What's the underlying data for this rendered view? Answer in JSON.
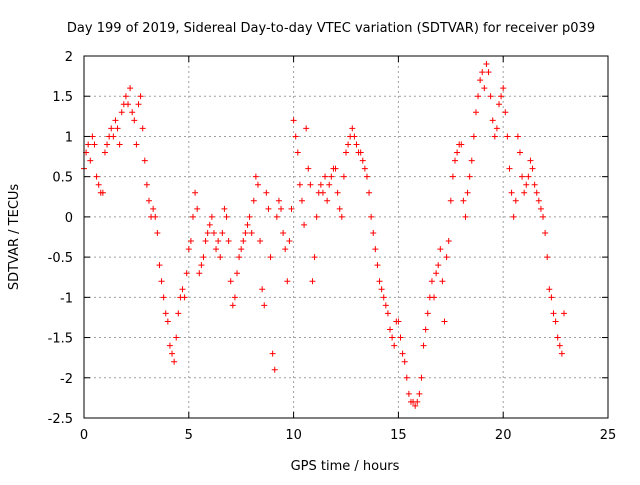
{
  "chart_data": {
    "type": "scatter",
    "title": "Day 199 of 2019, Sidereal Day-to-day VTEC variation (SDTVAR) for receiver p039",
    "xlabel": "GPS time / hours",
    "ylabel": "SDTVAR / TECUs",
    "xlim": [
      0,
      25
    ],
    "ylim": [
      -2.5,
      2
    ],
    "xticks": [
      0,
      5,
      10,
      15,
      20,
      25
    ],
    "yticks": [
      -2.5,
      -2,
      -1.5,
      -1,
      -0.5,
      0,
      0.5,
      1,
      1.5,
      2
    ],
    "grid": true,
    "marker": "+",
    "series": [
      {
        "name": "SDTVAR",
        "color": "#ff0000",
        "points": [
          [
            0.0,
            0.6
          ],
          [
            0.1,
            0.8
          ],
          [
            0.2,
            0.9
          ],
          [
            0.3,
            0.7
          ],
          [
            0.4,
            1.0
          ],
          [
            0.5,
            0.9
          ],
          [
            0.6,
            0.5
          ],
          [
            0.7,
            0.4
          ],
          [
            0.8,
            0.3
          ],
          [
            0.9,
            0.3
          ],
          [
            1.0,
            0.8
          ],
          [
            1.1,
            0.9
          ],
          [
            1.2,
            1.0
          ],
          [
            1.3,
            1.1
          ],
          [
            1.4,
            1.0
          ],
          [
            1.5,
            1.2
          ],
          [
            1.6,
            1.1
          ],
          [
            1.7,
            0.9
          ],
          [
            1.8,
            1.3
          ],
          [
            1.9,
            1.4
          ],
          [
            2.0,
            1.5
          ],
          [
            2.1,
            1.4
          ],
          [
            2.2,
            1.6
          ],
          [
            2.3,
            1.3
          ],
          [
            2.4,
            1.2
          ],
          [
            2.5,
            0.9
          ],
          [
            2.6,
            1.4
          ],
          [
            2.7,
            1.5
          ],
          [
            2.8,
            1.1
          ],
          [
            2.9,
            0.7
          ],
          [
            3.0,
            0.4
          ],
          [
            3.1,
            0.2
          ],
          [
            3.2,
            0.0
          ],
          [
            3.3,
            0.1
          ],
          [
            3.4,
            0.0
          ],
          [
            3.5,
            -0.2
          ],
          [
            3.6,
            -0.6
          ],
          [
            3.7,
            -0.8
          ],
          [
            3.8,
            -1.0
          ],
          [
            3.9,
            -1.2
          ],
          [
            4.0,
            -1.3
          ],
          [
            4.1,
            -1.6
          ],
          [
            4.2,
            -1.7
          ],
          [
            4.3,
            -1.8
          ],
          [
            4.4,
            -1.5
          ],
          [
            4.5,
            -1.2
          ],
          [
            4.6,
            -1.0
          ],
          [
            4.7,
            -0.9
          ],
          [
            4.8,
            -1.0
          ],
          [
            4.9,
            -0.7
          ],
          [
            5.0,
            -0.4
          ],
          [
            5.1,
            -0.3
          ],
          [
            5.2,
            0.0
          ],
          [
            5.3,
            0.3
          ],
          [
            5.4,
            0.1
          ],
          [
            5.5,
            -0.7
          ],
          [
            5.6,
            -0.6
          ],
          [
            5.7,
            -0.5
          ],
          [
            5.8,
            -0.3
          ],
          [
            5.9,
            -0.2
          ],
          [
            6.0,
            -0.1
          ],
          [
            6.1,
            0.0
          ],
          [
            6.2,
            -0.2
          ],
          [
            6.3,
            -0.4
          ],
          [
            6.4,
            -0.3
          ],
          [
            6.5,
            -0.5
          ],
          [
            6.6,
            -0.2
          ],
          [
            6.7,
            0.1
          ],
          [
            6.8,
            0.0
          ],
          [
            6.9,
            -0.3
          ],
          [
            7.0,
            -0.8
          ],
          [
            7.1,
            -1.1
          ],
          [
            7.2,
            -1.0
          ],
          [
            7.3,
            -0.7
          ],
          [
            7.4,
            -0.5
          ],
          [
            7.5,
            -0.4
          ],
          [
            7.6,
            -0.3
          ],
          [
            7.7,
            -0.2
          ],
          [
            7.8,
            -0.1
          ],
          [
            7.9,
            0.0
          ],
          [
            8.0,
            -0.2
          ],
          [
            8.1,
            0.2
          ],
          [
            8.2,
            0.5
          ],
          [
            8.3,
            0.4
          ],
          [
            8.4,
            -0.3
          ],
          [
            8.5,
            -0.9
          ],
          [
            8.6,
            -1.1
          ],
          [
            8.7,
            0.3
          ],
          [
            8.8,
            0.1
          ],
          [
            8.9,
            -0.5
          ],
          [
            9.0,
            -1.7
          ],
          [
            9.1,
            -1.9
          ],
          [
            9.2,
            0.0
          ],
          [
            9.3,
            0.2
          ],
          [
            9.4,
            0.1
          ],
          [
            9.5,
            -0.2
          ],
          [
            9.6,
            -0.4
          ],
          [
            9.7,
            -0.8
          ],
          [
            9.8,
            -0.3
          ],
          [
            9.9,
            0.1
          ],
          [
            10.0,
            1.2
          ],
          [
            10.1,
            1.0
          ],
          [
            10.2,
            0.8
          ],
          [
            10.3,
            0.4
          ],
          [
            10.4,
            0.2
          ],
          [
            10.5,
            -0.1
          ],
          [
            10.6,
            1.1
          ],
          [
            10.7,
            0.6
          ],
          [
            10.8,
            0.4
          ],
          [
            10.9,
            -0.8
          ],
          [
            11.0,
            -0.5
          ],
          [
            11.1,
            0.0
          ],
          [
            11.2,
            0.3
          ],
          [
            11.3,
            0.4
          ],
          [
            11.4,
            0.3
          ],
          [
            11.5,
            0.5
          ],
          [
            11.6,
            0.2
          ],
          [
            11.7,
            0.4
          ],
          [
            11.8,
            0.5
          ],
          [
            11.9,
            0.6
          ],
          [
            12.0,
            0.6
          ],
          [
            12.1,
            0.3
          ],
          [
            12.2,
            0.1
          ],
          [
            12.3,
            0.0
          ],
          [
            12.4,
            0.5
          ],
          [
            12.5,
            0.8
          ],
          [
            12.6,
            0.9
          ],
          [
            12.7,
            1.0
          ],
          [
            12.8,
            1.1
          ],
          [
            12.9,
            1.0
          ],
          [
            13.0,
            0.9
          ],
          [
            13.1,
            0.8
          ],
          [
            13.2,
            0.8
          ],
          [
            13.3,
            0.7
          ],
          [
            13.4,
            0.6
          ],
          [
            13.5,
            0.5
          ],
          [
            13.6,
            0.3
          ],
          [
            13.7,
            0.0
          ],
          [
            13.8,
            -0.2
          ],
          [
            13.9,
            -0.4
          ],
          [
            14.0,
            -0.6
          ],
          [
            14.1,
            -0.8
          ],
          [
            14.2,
            -0.9
          ],
          [
            14.3,
            -1.0
          ],
          [
            14.4,
            -1.1
          ],
          [
            14.5,
            -1.2
          ],
          [
            14.6,
            -1.4
          ],
          [
            14.7,
            -1.5
          ],
          [
            14.8,
            -1.6
          ],
          [
            14.9,
            -1.3
          ],
          [
            15.0,
            -1.3
          ],
          [
            15.1,
            -1.5
          ],
          [
            15.2,
            -1.7
          ],
          [
            15.3,
            -1.8
          ],
          [
            15.4,
            -2.0
          ],
          [
            15.5,
            -2.2
          ],
          [
            15.6,
            -2.3
          ],
          [
            15.7,
            -2.3
          ],
          [
            15.8,
            -2.35
          ],
          [
            15.9,
            -2.3
          ],
          [
            16.0,
            -2.2
          ],
          [
            16.1,
            -2.0
          ],
          [
            16.2,
            -1.6
          ],
          [
            16.3,
            -1.4
          ],
          [
            16.4,
            -1.2
          ],
          [
            16.5,
            -1.0
          ],
          [
            16.6,
            -0.8
          ],
          [
            16.7,
            -1.0
          ],
          [
            16.8,
            -0.7
          ],
          [
            16.9,
            -0.6
          ],
          [
            17.0,
            -0.4
          ],
          [
            17.1,
            -0.8
          ],
          [
            17.2,
            -1.3
          ],
          [
            17.3,
            -0.5
          ],
          [
            17.4,
            -0.3
          ],
          [
            17.5,
            0.2
          ],
          [
            17.6,
            0.5
          ],
          [
            17.7,
            0.7
          ],
          [
            17.8,
            0.8
          ],
          [
            17.9,
            0.9
          ],
          [
            18.0,
            0.9
          ],
          [
            18.1,
            0.2
          ],
          [
            18.2,
            0.0
          ],
          [
            18.3,
            0.3
          ],
          [
            18.4,
            0.5
          ],
          [
            18.5,
            0.7
          ],
          [
            18.6,
            1.0
          ],
          [
            18.7,
            1.3
          ],
          [
            18.8,
            1.5
          ],
          [
            18.9,
            1.7
          ],
          [
            19.0,
            1.8
          ],
          [
            19.1,
            1.6
          ],
          [
            19.2,
            1.9
          ],
          [
            19.3,
            1.8
          ],
          [
            19.4,
            1.5
          ],
          [
            19.5,
            1.2
          ],
          [
            19.6,
            1.0
          ],
          [
            19.7,
            1.1
          ],
          [
            19.8,
            1.4
          ],
          [
            19.9,
            1.5
          ],
          [
            20.0,
            1.6
          ],
          [
            20.1,
            1.3
          ],
          [
            20.2,
            1.0
          ],
          [
            20.3,
            0.6
          ],
          [
            20.4,
            0.3
          ],
          [
            20.5,
            0.0
          ],
          [
            20.6,
            0.2
          ],
          [
            20.7,
            1.0
          ],
          [
            20.8,
            0.8
          ],
          [
            20.9,
            0.5
          ],
          [
            21.0,
            0.3
          ],
          [
            21.1,
            0.4
          ],
          [
            21.2,
            0.5
          ],
          [
            21.3,
            0.7
          ],
          [
            21.4,
            0.6
          ],
          [
            21.5,
            0.4
          ],
          [
            21.6,
            0.3
          ],
          [
            21.7,
            0.2
          ],
          [
            21.8,
            0.1
          ],
          [
            21.9,
            0.0
          ],
          [
            22.0,
            -0.2
          ],
          [
            22.1,
            -0.5
          ],
          [
            22.2,
            -0.9
          ],
          [
            22.3,
            -1.0
          ],
          [
            22.4,
            -1.2
          ],
          [
            22.5,
            -1.3
          ],
          [
            22.6,
            -1.5
          ],
          [
            22.7,
            -1.6
          ],
          [
            22.8,
            -1.7
          ],
          [
            22.9,
            -1.2
          ]
        ]
      }
    ]
  }
}
